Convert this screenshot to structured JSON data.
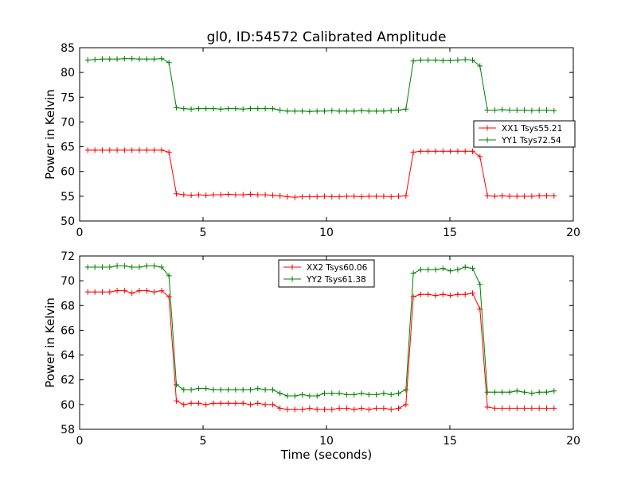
{
  "title": "gl0, ID:54572 Calibrated Amplitude",
  "colors": {
    "red": "#ff0000",
    "green": "#008000",
    "axis": "#000000"
  },
  "chart_data": [
    {
      "type": "line",
      "title": "gl0, ID:54572 Calibrated Amplitude",
      "xlabel": "",
      "ylabel": "Power in Kelvin",
      "xlim": [
        0,
        20
      ],
      "ylim": [
        50,
        85
      ],
      "xticks": [
        0,
        5,
        10,
        15,
        20
      ],
      "yticks": [
        50,
        55,
        60,
        65,
        70,
        75,
        80,
        85
      ],
      "grid": false,
      "legend_position": "center-right",
      "x": [
        0.33,
        0.62,
        0.92,
        1.22,
        1.52,
        1.82,
        2.12,
        2.42,
        2.72,
        3.02,
        3.32,
        3.62,
        3.92,
        4.22,
        4.52,
        4.82,
        5.12,
        5.42,
        5.72,
        6.02,
        6.32,
        6.62,
        6.92,
        7.22,
        7.52,
        7.82,
        8.12,
        8.42,
        8.72,
        9.02,
        9.32,
        9.62,
        9.92,
        10.22,
        10.52,
        10.82,
        11.12,
        11.42,
        11.72,
        12.02,
        12.32,
        12.62,
        12.92,
        13.22,
        13.52,
        13.82,
        14.12,
        14.42,
        14.72,
        15.02,
        15.32,
        15.62,
        15.92,
        16.22,
        16.52,
        16.82,
        17.12,
        17.42,
        17.72,
        18.02,
        18.32,
        18.62,
        18.92,
        19.22
      ],
      "series": [
        {
          "name": "XX1 Tsys55.21",
          "color": "#ff0000",
          "values": [
            64.3,
            64.3,
            64.3,
            64.3,
            64.3,
            64.3,
            64.3,
            64.3,
            64.3,
            64.3,
            64.3,
            63.9,
            55.5,
            55.3,
            55.2,
            55.3,
            55.2,
            55.3,
            55.3,
            55.4,
            55.3,
            55.3,
            55.4,
            55.3,
            55.3,
            55.2,
            55.1,
            54.9,
            54.8,
            54.9,
            54.9,
            54.9,
            55.0,
            54.9,
            54.9,
            55.0,
            55.0,
            54.9,
            55.0,
            55.0,
            55.0,
            54.9,
            55.0,
            55.1,
            63.9,
            64.1,
            64.1,
            64.1,
            64.1,
            64.1,
            64.1,
            64.1,
            64.1,
            63.0,
            55.1,
            55.0,
            55.1,
            55.0,
            55.0,
            55.0,
            55.0,
            55.1,
            55.1,
            55.1
          ]
        },
        {
          "name": "YY1 Tsys72.54",
          "color": "#008000",
          "values": [
            82.5,
            82.6,
            82.7,
            82.7,
            82.7,
            82.8,
            82.8,
            82.7,
            82.7,
            82.7,
            82.8,
            82.0,
            72.9,
            72.7,
            72.6,
            72.7,
            72.7,
            72.7,
            72.6,
            72.7,
            72.7,
            72.6,
            72.7,
            72.7,
            72.7,
            72.7,
            72.4,
            72.2,
            72.2,
            72.2,
            72.1,
            72.2,
            72.2,
            72.3,
            72.2,
            72.2,
            72.2,
            72.3,
            72.2,
            72.2,
            72.2,
            72.3,
            72.4,
            72.6,
            82.3,
            82.5,
            82.5,
            82.5,
            82.4,
            82.4,
            82.5,
            82.6,
            82.5,
            81.3,
            72.4,
            72.4,
            72.5,
            72.4,
            72.4,
            72.4,
            72.3,
            72.4,
            72.4,
            72.3
          ]
        }
      ]
    },
    {
      "type": "line",
      "title": "",
      "xlabel": "Time (seconds)",
      "ylabel": "Power in Kelvin",
      "xlim": [
        0,
        20
      ],
      "ylim": [
        58,
        72
      ],
      "xticks": [
        0,
        5,
        10,
        15,
        20
      ],
      "yticks": [
        58,
        60,
        62,
        64,
        66,
        68,
        70,
        72
      ],
      "grid": false,
      "legend_position": "upper-center",
      "x": [
        0.33,
        0.62,
        0.92,
        1.22,
        1.52,
        1.82,
        2.12,
        2.42,
        2.72,
        3.02,
        3.32,
        3.62,
        3.92,
        4.22,
        4.52,
        4.82,
        5.12,
        5.42,
        5.72,
        6.02,
        6.32,
        6.62,
        6.92,
        7.22,
        7.52,
        7.82,
        8.12,
        8.42,
        8.72,
        9.02,
        9.32,
        9.62,
        9.92,
        10.22,
        10.52,
        10.82,
        11.12,
        11.42,
        11.72,
        12.02,
        12.32,
        12.62,
        12.92,
        13.22,
        13.52,
        13.82,
        14.12,
        14.42,
        14.72,
        15.02,
        15.32,
        15.62,
        15.92,
        16.22,
        16.52,
        16.82,
        17.12,
        17.42,
        17.72,
        18.02,
        18.32,
        18.62,
        18.92,
        19.22
      ],
      "series": [
        {
          "name": "XX2 Tsys60.06",
          "color": "#ff0000",
          "values": [
            69.1,
            69.1,
            69.1,
            69.1,
            69.2,
            69.2,
            69.0,
            69.2,
            69.2,
            69.1,
            69.2,
            68.7,
            60.3,
            60.0,
            60.1,
            60.1,
            60.0,
            60.1,
            60.1,
            60.1,
            60.1,
            60.1,
            60.0,
            60.1,
            60.0,
            60.0,
            59.7,
            59.6,
            59.6,
            59.6,
            59.7,
            59.6,
            59.6,
            59.6,
            59.7,
            59.7,
            59.6,
            59.7,
            59.6,
            59.7,
            59.7,
            59.6,
            59.7,
            60.0,
            68.7,
            68.9,
            68.9,
            68.8,
            68.9,
            68.8,
            68.9,
            68.9,
            69.0,
            67.7,
            59.8,
            59.7,
            59.7,
            59.7,
            59.7,
            59.7,
            59.7,
            59.7,
            59.7,
            59.7
          ]
        },
        {
          "name": "YY2 Tsys61.38",
          "color": "#008000",
          "values": [
            71.1,
            71.1,
            71.1,
            71.1,
            71.2,
            71.2,
            71.1,
            71.1,
            71.2,
            71.2,
            71.1,
            70.4,
            61.6,
            61.2,
            61.2,
            61.3,
            61.3,
            61.2,
            61.2,
            61.2,
            61.2,
            61.2,
            61.2,
            61.3,
            61.2,
            61.2,
            60.9,
            60.7,
            60.7,
            60.8,
            60.7,
            60.7,
            60.9,
            60.9,
            60.9,
            60.8,
            60.8,
            60.9,
            60.8,
            60.8,
            60.9,
            60.8,
            60.9,
            61.2,
            70.6,
            70.9,
            70.9,
            70.9,
            71.0,
            70.8,
            70.9,
            71.1,
            71.0,
            69.7,
            61.0,
            61.0,
            61.0,
            61.0,
            61.1,
            61.0,
            60.9,
            61.0,
            61.0,
            61.1
          ]
        }
      ]
    }
  ]
}
